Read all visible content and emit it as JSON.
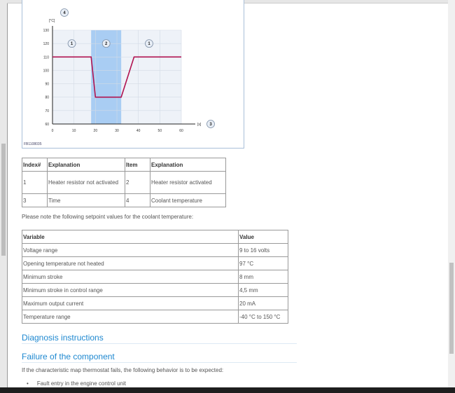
{
  "figure": {
    "id": "FB1108035",
    "callouts": {
      "y_axis": "4",
      "x_axis": "3",
      "region_a": "1",
      "region_b": "2",
      "region_c": "1"
    }
  },
  "chart_data": {
    "type": "line",
    "x_unit": "[s]",
    "y_unit": "[°C]",
    "xlim": [
      0,
      60
    ],
    "ylim": [
      60,
      130
    ],
    "x_ticks": [
      "0",
      "10",
      "20",
      "30",
      "40",
      "50",
      "60"
    ],
    "y_ticks": [
      "60",
      "70",
      "80",
      "90",
      "100",
      "110",
      "120",
      "130"
    ],
    "x": [
      0,
      18,
      20,
      32,
      38,
      60
    ],
    "y": [
      110,
      110,
      80,
      80,
      110,
      110
    ],
    "highlight_range": [
      18,
      32
    ],
    "grid": true,
    "colors": {
      "line": "#b0124f",
      "highlight": "#a9cdf3",
      "plot_bg": "#eef2f8"
    }
  },
  "legend_table": {
    "headers": [
      "Index#",
      "Explanation",
      "Item",
      "Explanation"
    ],
    "rows": [
      [
        "1",
        "Heater resistor not activated",
        "2",
        "Heater resistor activated"
      ],
      [
        "3",
        "Time",
        "4",
        "Coolant temperature"
      ]
    ]
  },
  "note": "Please note the following setpoint values for the coolant temperature:",
  "setpoints": {
    "headers": [
      "Variable",
      "Value"
    ],
    "rows": [
      [
        "Voltage range",
        "9 to 16 volts"
      ],
      [
        "Opening temperature not heated",
        "97 °C"
      ],
      [
        "Minimum stroke",
        "8 mm"
      ],
      [
        "Minimum stroke in control range",
        "4,5 mm"
      ],
      [
        "Maximum output current",
        "20 mA"
      ],
      [
        "Temperature range",
        "-40 °C to 150 °C"
      ]
    ]
  },
  "diagnosis_heading": "Diagnosis instructions",
  "failure_heading": "Failure of the component",
  "failure_text": "If the characteristic map thermostat fails, the following behavior is to be expected:",
  "bullets": [
    "Fault entry in the engine control unit"
  ]
}
